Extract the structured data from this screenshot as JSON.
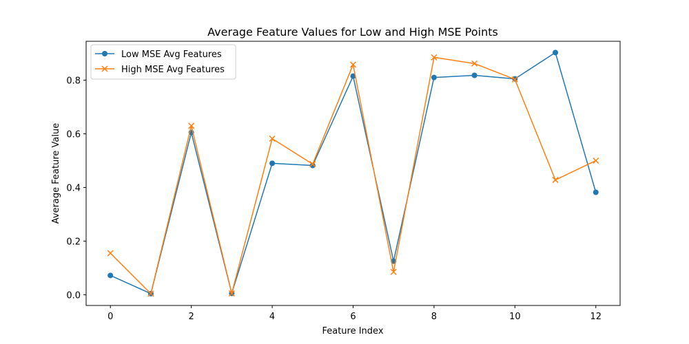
{
  "chart_data": {
    "type": "line",
    "title": "Average Feature Values for Low and High MSE Points",
    "xlabel": "Feature Index",
    "ylabel": "Average Feature Value",
    "xlim": [
      -0.6,
      12.6
    ],
    "ylim": [
      -0.04,
      0.945
    ],
    "xticks": [
      0,
      2,
      4,
      6,
      8,
      10,
      12
    ],
    "yticks": [
      0.0,
      0.2,
      0.4,
      0.6,
      0.8
    ],
    "xtick_labels": [
      "0",
      "2",
      "4",
      "6",
      "8",
      "10",
      "12"
    ],
    "ytick_labels": [
      "0.0",
      "0.2",
      "0.4",
      "0.6",
      "0.8"
    ],
    "grid": false,
    "legend_position": "top-left",
    "x": [
      0,
      1,
      2,
      3,
      4,
      5,
      6,
      7,
      8,
      9,
      10,
      11,
      12
    ],
    "series": [
      {
        "name": "Low MSE Avg Features",
        "color": "#1f77b4",
        "marker": "circle",
        "values": [
          0.072,
          0.004,
          0.605,
          0.005,
          0.49,
          0.482,
          0.815,
          0.125,
          0.81,
          0.818,
          0.805,
          0.903,
          0.382
        ]
      },
      {
        "name": "High MSE Avg Features",
        "color": "#ff7f0e",
        "marker": "x",
        "values": [
          0.155,
          0.004,
          0.63,
          0.005,
          0.582,
          0.487,
          0.858,
          0.085,
          0.885,
          0.862,
          0.803,
          0.428,
          0.5
        ]
      }
    ]
  }
}
